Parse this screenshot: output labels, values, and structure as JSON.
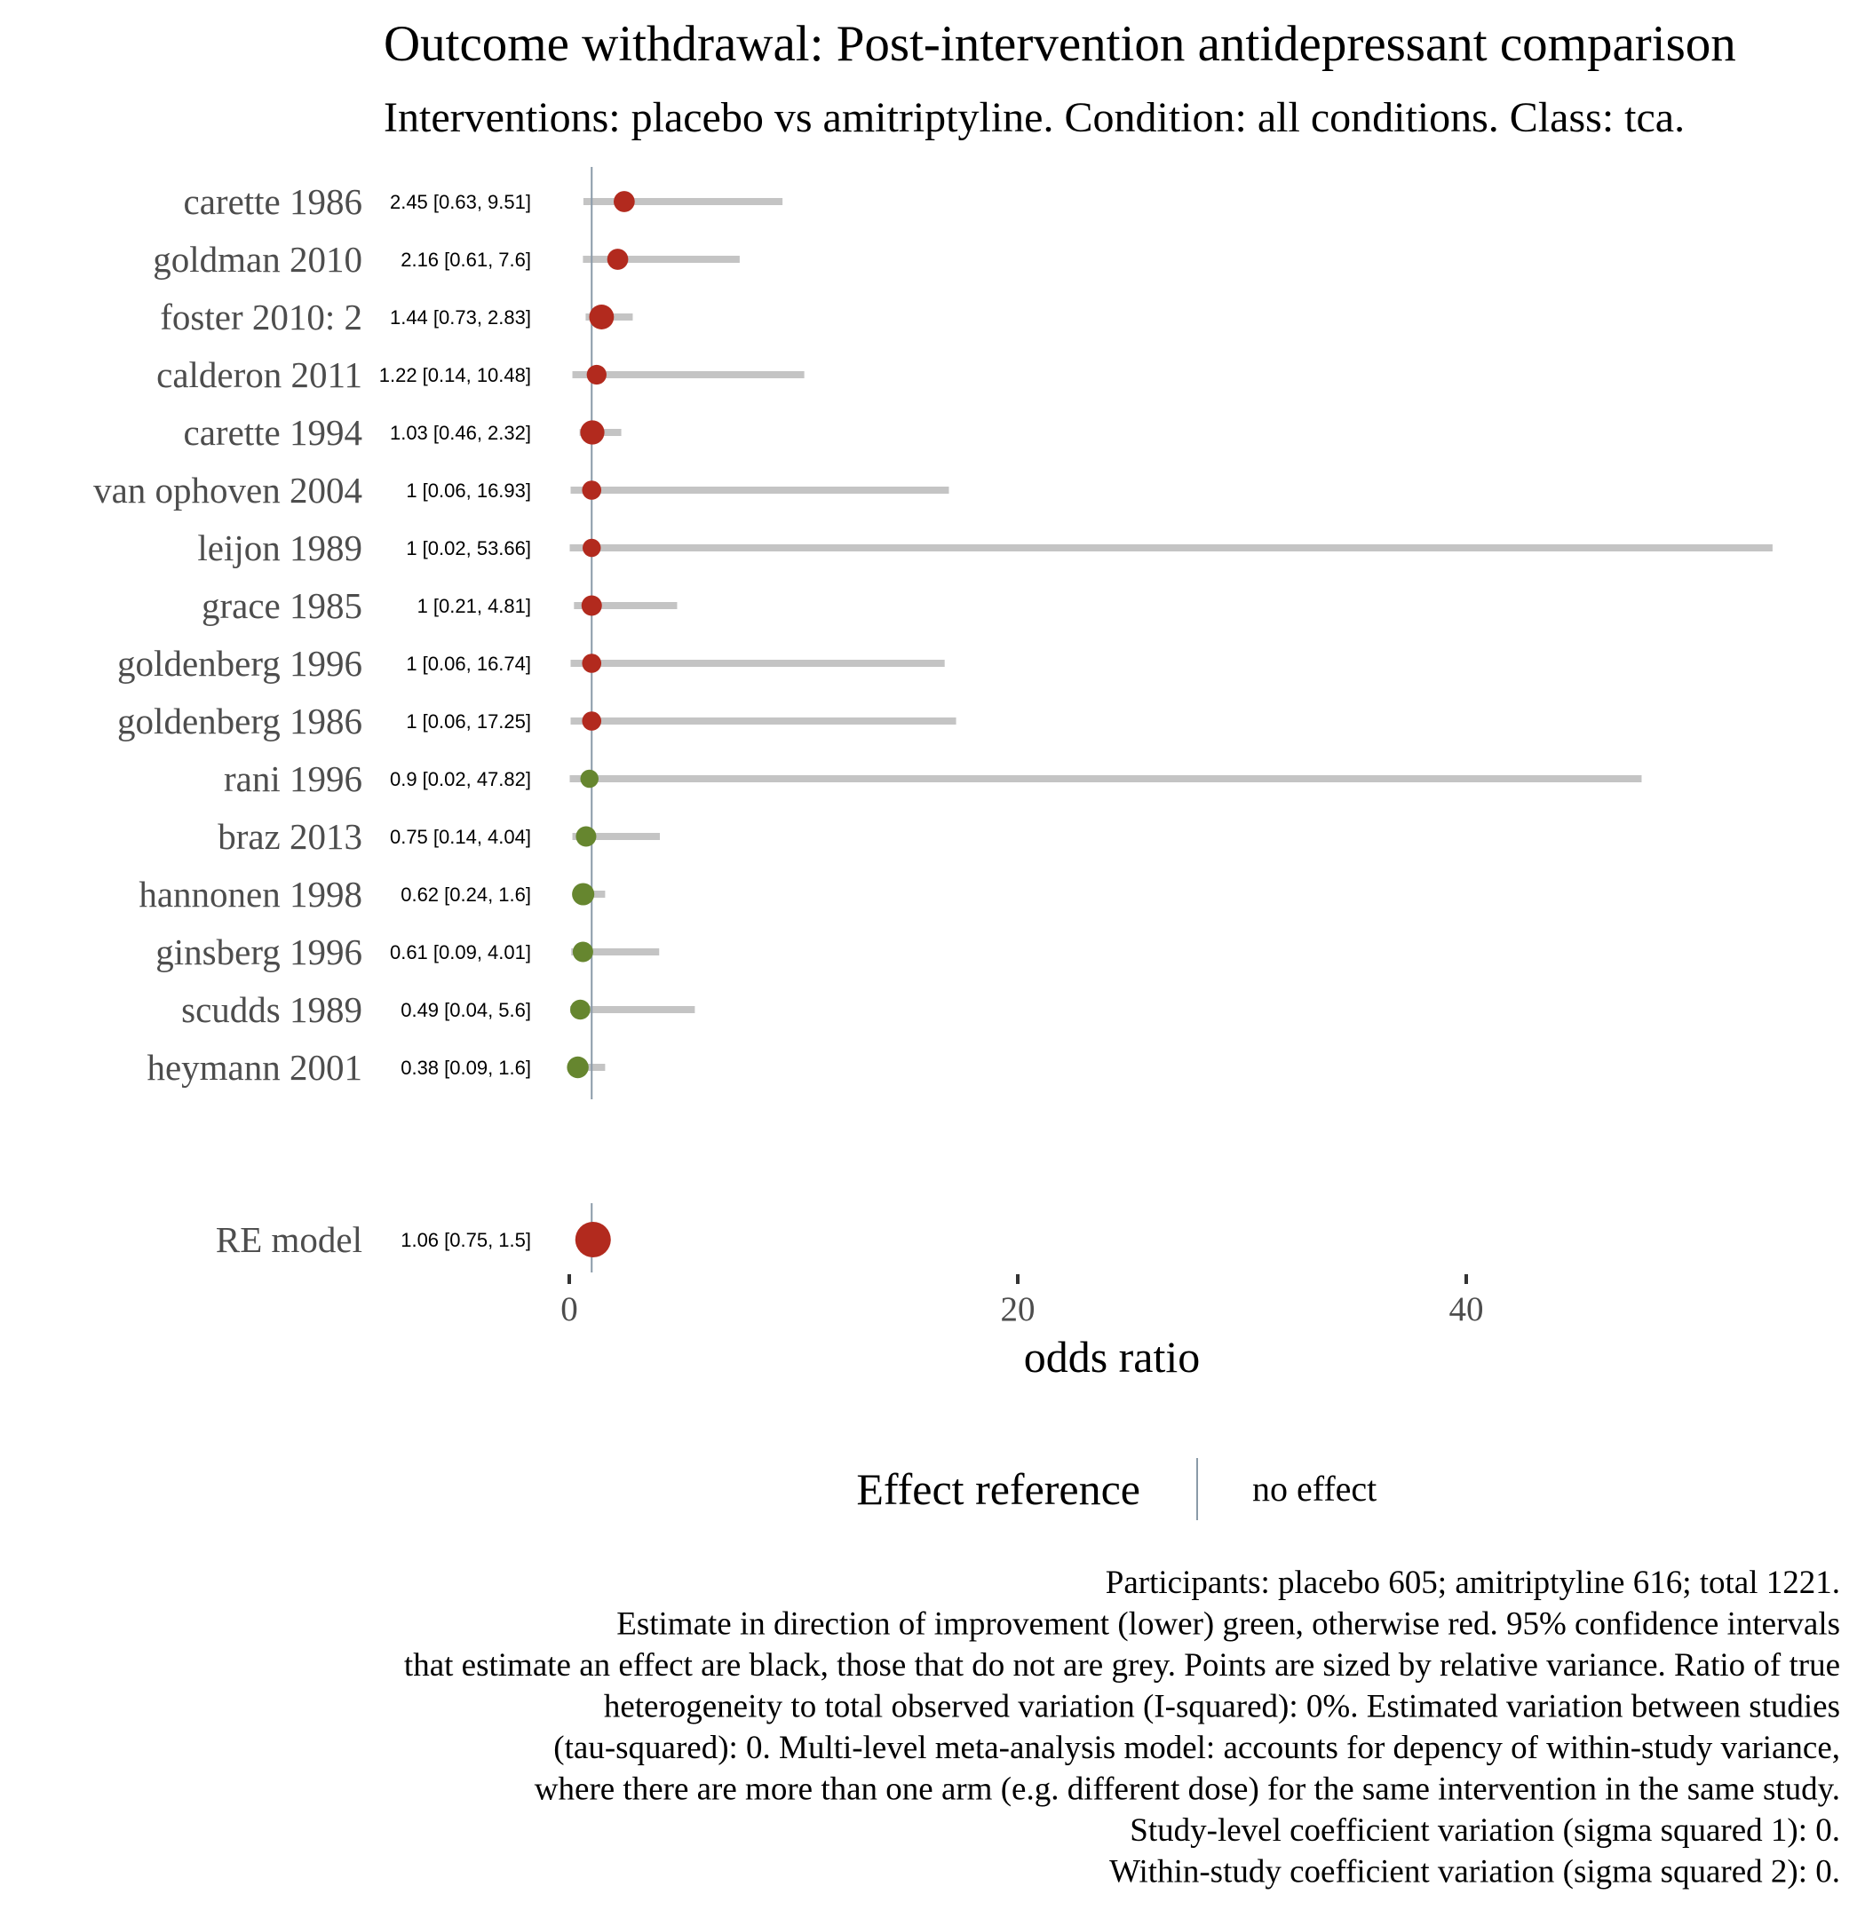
{
  "chart_data": {
    "type": "forest",
    "title": "Outcome withdrawal: Post-intervention antidepressant comparison",
    "subtitle": "Interventions: placebo vs amitriptyline. Condition: all conditions. Class: tca.",
    "xlabel": "odds ratio",
    "xlim": [
      0,
      55
    ],
    "xticks": [
      0,
      20,
      40
    ],
    "reference_value": 1,
    "studies": [
      {
        "label": "carette 1986",
        "or": 2.45,
        "lo": 0.63,
        "hi": 9.51,
        "text": "2.45 [0.63, 9.51]",
        "color": "red",
        "weight": 0.55
      },
      {
        "label": "goldman 2010",
        "or": 2.16,
        "lo": 0.61,
        "hi": 7.6,
        "text": "2.16 [0.61, 7.6]",
        "color": "red",
        "weight": 0.55
      },
      {
        "label": "foster 2010: 2",
        "or": 1.44,
        "lo": 0.73,
        "hi": 2.83,
        "text": "1.44 [0.73, 2.83]",
        "color": "red",
        "weight": 0.85
      },
      {
        "label": "calderon 2011",
        "or": 1.22,
        "lo": 0.14,
        "hi": 10.48,
        "text": "1.22 [0.14, 10.48]",
        "color": "red",
        "weight": 0.45
      },
      {
        "label": "carette 1994",
        "or": 1.03,
        "lo": 0.46,
        "hi": 2.32,
        "text": "1.03 [0.46, 2.32]",
        "color": "red",
        "weight": 0.8
      },
      {
        "label": "van ophoven 2004",
        "or": 1,
        "lo": 0.06,
        "hi": 16.93,
        "text": "1 [0.06, 16.93]",
        "color": "red",
        "weight": 0.4
      },
      {
        "label": "leijon 1989",
        "or": 1,
        "lo": 0.02,
        "hi": 53.66,
        "text": "1 [0.02, 53.66]",
        "color": "red",
        "weight": 0.32
      },
      {
        "label": "grace 1985",
        "or": 1,
        "lo": 0.21,
        "hi": 4.81,
        "text": "1 [0.21, 4.81]",
        "color": "red",
        "weight": 0.5
      },
      {
        "label": "goldenberg 1996",
        "or": 1,
        "lo": 0.06,
        "hi": 16.74,
        "text": "1 [0.06, 16.74]",
        "color": "red",
        "weight": 0.4
      },
      {
        "label": "goldenberg 1986",
        "or": 1,
        "lo": 0.06,
        "hi": 17.25,
        "text": "1 [0.06, 17.25]",
        "color": "red",
        "weight": 0.4
      },
      {
        "label": "rani 1996",
        "or": 0.9,
        "lo": 0.02,
        "hi": 47.82,
        "text": "0.9 [0.02, 47.82]",
        "color": "green",
        "weight": 0.32
      },
      {
        "label": "braz 2013",
        "or": 0.75,
        "lo": 0.14,
        "hi": 4.04,
        "text": "0.75 [0.14, 4.04]",
        "color": "green",
        "weight": 0.5
      },
      {
        "label": "hannonen 1998",
        "or": 0.62,
        "lo": 0.24,
        "hi": 1.6,
        "text": "0.62 [0.24, 1.6]",
        "color": "green",
        "weight": 0.65
      },
      {
        "label": "ginsberg 1996",
        "or": 0.61,
        "lo": 0.09,
        "hi": 4.01,
        "text": "0.61 [0.09, 4.01]",
        "color": "green",
        "weight": 0.5
      },
      {
        "label": "scudds 1989",
        "or": 0.49,
        "lo": 0.04,
        "hi": 5.6,
        "text": "0.49 [0.04, 5.6]",
        "color": "green",
        "weight": 0.47
      },
      {
        "label": "heymann 2001",
        "or": 0.38,
        "lo": 0.09,
        "hi": 1.6,
        "text": "0.38 [0.09, 1.6]",
        "color": "green",
        "weight": 0.6
      }
    ],
    "pooled": {
      "label": "RE model",
      "or": 1.06,
      "lo": 0.75,
      "hi": 1.5,
      "text": "1.06 [0.75, 1.5]",
      "color": "red"
    },
    "legend": {
      "title": "Effect reference",
      "label": "no effect",
      "placement": "bottom"
    },
    "colors": {
      "red": "#b22a1e",
      "green": "#66862f",
      "ci": "#c4c4c4",
      "reference": "#8a9aa8",
      "axis_text": "#4d4d4d"
    },
    "caption": [
      "Participants: placebo 605; amitriptyline 616; total 1221.",
      "Estimate in direction of improvement (lower) green, otherwise red. 95% confidence intervals",
      "that estimate an effect are black, those that do not are grey. Points are sized by relative variance. Ratio of true",
      "heterogeneity to total observed variation (I-squared): 0%. Estimated variation between studies",
      "(tau-squared): 0. Multi-level meta-analysis model: accounts for depency of within-study variance,",
      "where there are more than one arm (e.g. different dose) for the same intervention in the same study.",
      "Study-level coefficient variation (sigma squared 1): 0.",
      "Within-study coefficient variation (sigma squared 2): 0."
    ]
  }
}
